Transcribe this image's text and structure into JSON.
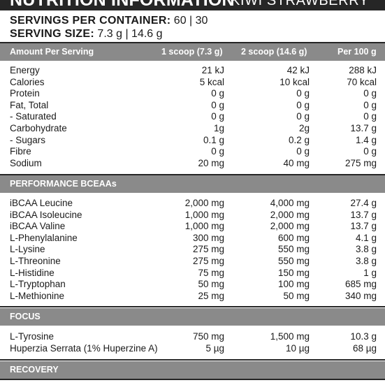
{
  "header": {
    "title": "NUTRITION INFORMATION",
    "flavor": "KIWI STRAWBERRY"
  },
  "servings": {
    "per_container_label": "SERVINGS PER CONTAINER:",
    "per_container_value": "60 | 30",
    "size_label": "SERVING SIZE:",
    "size_value": "7.3 g | 14.6 g"
  },
  "columns": {
    "name": "Amount Per Serving",
    "c1": "1 scoop (7.3 g)",
    "c2": "2 scoop (14.6 g)",
    "c3": "Per 100 g"
  },
  "nutrition_rows": [
    {
      "name": "Energy",
      "c1": "21 kJ",
      "c2": "42 kJ",
      "c3": "288 kJ"
    },
    {
      "name": "Calories",
      "c1": "5 kcal",
      "c2": "10 kcal",
      "c3": "70 kcal"
    },
    {
      "name": "Protein",
      "c1": "0 g",
      "c2": "0 g",
      "c3": "0 g"
    },
    {
      "name": "Fat, Total",
      "c1": "0 g",
      "c2": "0 g",
      "c3": "0 g"
    },
    {
      "name": " - Saturated",
      "c1": "0 g",
      "c2": "0 g",
      "c3": "0 g"
    },
    {
      "name": "Carbohydrate",
      "c1": "1g",
      "c2": "2g",
      "c3": "13.7 g"
    },
    {
      "name": " - Sugars",
      "c1": "0.1 g",
      "c2": "0.2 g",
      "c3": "1.4 g"
    },
    {
      "name": "Fibre",
      "c1": "0 g",
      "c2": "0 g",
      "c3": "0 g"
    },
    {
      "name": "Sodium",
      "c1": "20 mg",
      "c2": "40 mg",
      "c3": "275 mg"
    }
  ],
  "sections": {
    "performance": "PERFORMANCE BCEAAs",
    "focus": "FOCUS",
    "recovery": "RECOVERY"
  },
  "performance_rows": [
    {
      "name": "iBCAA Leucine",
      "c1": "2,000 mg",
      "c2": "4,000 mg",
      "c3": "27.4 g"
    },
    {
      "name": "iBCAA Isoleucine",
      "c1": "1,000 mg",
      "c2": "2,000 mg",
      "c3": "13.7 g"
    },
    {
      "name": "iBCAA Valine",
      "c1": "1,000 mg",
      "c2": "2,000 mg",
      "c3": "13.7 g"
    },
    {
      "name": "L-Phenylalanine",
      "c1": "300 mg",
      "c2": "600 mg",
      "c3": "4.1 g"
    },
    {
      "name": "L-Lysine",
      "c1": "275 mg",
      "c2": "550 mg",
      "c3": "3.8 g"
    },
    {
      "name": "L-Threonine",
      "c1": "275 mg",
      "c2": "550 mg",
      "c3": "3.8 g"
    },
    {
      "name": "L-Histidine",
      "c1": "75 mg",
      "c2": "150 mg",
      "c3": "1 g"
    },
    {
      "name": "L-Tryptophan",
      "c1": "50 mg",
      "c2": "100 mg",
      "c3": "685 mg"
    },
    {
      "name": "L-Methionine",
      "c1": "25 mg",
      "c2": "50 mg",
      "c3": "340 mg"
    }
  ],
  "focus_rows": [
    {
      "name": "L-Tyrosine",
      "c1": "750 mg",
      "c2": "1,500 mg",
      "c3": "10.3 g"
    },
    {
      "name": "Huperzia Serrata (1% Huperzine A)",
      "c1": "5 µg",
      "c2": "10 µg",
      "c3": "68 µg"
    }
  ]
}
